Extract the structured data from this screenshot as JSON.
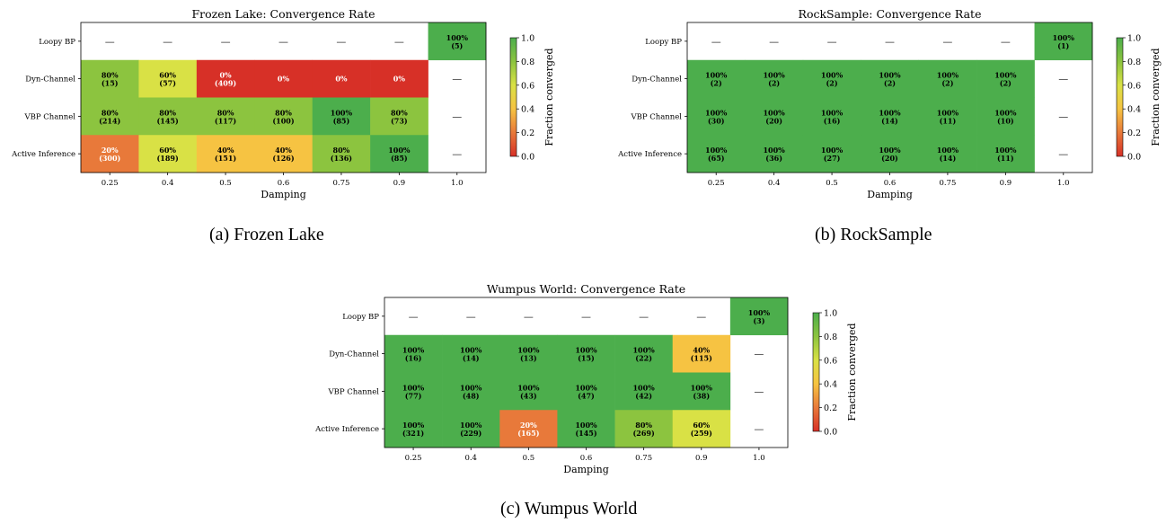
{
  "chart_data": [
    {
      "type": "heatmap",
      "title": "Frozen Lake: Convergence Rate",
      "xlabel": "Damping",
      "ylabel": "",
      "x_ticks": [
        "0.25",
        "0.4",
        "0.5",
        "0.6",
        "0.75",
        "0.9",
        "1.0"
      ],
      "rows": [
        "Loopy BP",
        "Dyn-Channel",
        "VBP Channel",
        "Active Inference"
      ],
      "cells": [
        [
          null,
          null,
          null,
          null,
          null,
          null,
          {
            "v": 1.0,
            "pct": "100%",
            "n": "(5)"
          }
        ],
        [
          {
            "v": 0.8,
            "pct": "80%",
            "n": "(15)"
          },
          {
            "v": 0.6,
            "pct": "60%",
            "n": "(57)"
          },
          {
            "v": 0.0,
            "pct": "0%",
            "n": "(409)"
          },
          {
            "v": 0.0,
            "pct": "0%",
            "n": ""
          },
          {
            "v": 0.0,
            "pct": "0%",
            "n": ""
          },
          {
            "v": 0.0,
            "pct": "0%",
            "n": ""
          },
          null
        ],
        [
          {
            "v": 0.8,
            "pct": "80%",
            "n": "(214)"
          },
          {
            "v": 0.8,
            "pct": "80%",
            "n": "(145)"
          },
          {
            "v": 0.8,
            "pct": "80%",
            "n": "(117)"
          },
          {
            "v": 0.8,
            "pct": "80%",
            "n": "(100)"
          },
          {
            "v": 1.0,
            "pct": "100%",
            "n": "(85)"
          },
          {
            "v": 0.8,
            "pct": "80%",
            "n": "(73)"
          },
          null
        ],
        [
          {
            "v": 0.2,
            "pct": "20%",
            "n": "(300)"
          },
          {
            "v": 0.6,
            "pct": "60%",
            "n": "(189)"
          },
          {
            "v": 0.4,
            "pct": "40%",
            "n": "(151)"
          },
          {
            "v": 0.4,
            "pct": "40%",
            "n": "(126)"
          },
          {
            "v": 0.8,
            "pct": "80%",
            "n": "(136)"
          },
          {
            "v": 1.0,
            "pct": "100%",
            "n": "(85)"
          },
          null
        ]
      ],
      "empty_marker": "—",
      "colorbar": {
        "label": "Fraction converged",
        "range": [
          0.0,
          1.0
        ],
        "ticks": [
          "0.0",
          "0.2",
          "0.4",
          "0.6",
          "0.8",
          "1.0"
        ]
      },
      "colors": {
        "0": "#d73027",
        "0.2": "#e8793a",
        "0.4": "#f6c342",
        "0.6": "#d9e145",
        "0.8": "#8cc43f",
        "1.0": "#4cae4c"
      }
    },
    {
      "type": "heatmap",
      "title": "RockSample: Convergence Rate",
      "xlabel": "Damping",
      "ylabel": "",
      "x_ticks": [
        "0.25",
        "0.4",
        "0.5",
        "0.6",
        "0.75",
        "0.9",
        "1.0"
      ],
      "rows": [
        "Loopy BP",
        "Dyn-Channel",
        "VBP Channel",
        "Active Inference"
      ],
      "cells": [
        [
          null,
          null,
          null,
          null,
          null,
          null,
          {
            "v": 1.0,
            "pct": "100%",
            "n": "(1)"
          }
        ],
        [
          {
            "v": 1.0,
            "pct": "100%",
            "n": "(2)"
          },
          {
            "v": 1.0,
            "pct": "100%",
            "n": "(2)"
          },
          {
            "v": 1.0,
            "pct": "100%",
            "n": "(2)"
          },
          {
            "v": 1.0,
            "pct": "100%",
            "n": "(2)"
          },
          {
            "v": 1.0,
            "pct": "100%",
            "n": "(2)"
          },
          {
            "v": 1.0,
            "pct": "100%",
            "n": "(2)"
          },
          null
        ],
        [
          {
            "v": 1.0,
            "pct": "100%",
            "n": "(30)"
          },
          {
            "v": 1.0,
            "pct": "100%",
            "n": "(20)"
          },
          {
            "v": 1.0,
            "pct": "100%",
            "n": "(16)"
          },
          {
            "v": 1.0,
            "pct": "100%",
            "n": "(14)"
          },
          {
            "v": 1.0,
            "pct": "100%",
            "n": "(11)"
          },
          {
            "v": 1.0,
            "pct": "100%",
            "n": "(10)"
          },
          null
        ],
        [
          {
            "v": 1.0,
            "pct": "100%",
            "n": "(65)"
          },
          {
            "v": 1.0,
            "pct": "100%",
            "n": "(36)"
          },
          {
            "v": 1.0,
            "pct": "100%",
            "n": "(27)"
          },
          {
            "v": 1.0,
            "pct": "100%",
            "n": "(20)"
          },
          {
            "v": 1.0,
            "pct": "100%",
            "n": "(14)"
          },
          {
            "v": 1.0,
            "pct": "100%",
            "n": "(11)"
          },
          null
        ]
      ],
      "empty_marker": "—",
      "colorbar": {
        "label": "Fraction converged",
        "range": [
          0.0,
          1.0
        ],
        "ticks": [
          "0.0",
          "0.2",
          "0.4",
          "0.6",
          "0.8",
          "1.0"
        ]
      },
      "colors": {
        "0": "#d73027",
        "0.2": "#e8793a",
        "0.4": "#f6c342",
        "0.6": "#d9e145",
        "0.8": "#8cc43f",
        "1.0": "#4cae4c"
      }
    },
    {
      "type": "heatmap",
      "title": "Wumpus World: Convergence Rate",
      "xlabel": "Damping",
      "ylabel": "",
      "x_ticks": [
        "0.25",
        "0.4",
        "0.5",
        "0.6",
        "0.75",
        "0.9",
        "1.0"
      ],
      "rows": [
        "Loopy BP",
        "Dyn-Channel",
        "VBP Channel",
        "Active Inference"
      ],
      "cells": [
        [
          null,
          null,
          null,
          null,
          null,
          null,
          {
            "v": 1.0,
            "pct": "100%",
            "n": "(3)"
          }
        ],
        [
          {
            "v": 1.0,
            "pct": "100%",
            "n": "(16)"
          },
          {
            "v": 1.0,
            "pct": "100%",
            "n": "(14)"
          },
          {
            "v": 1.0,
            "pct": "100%",
            "n": "(13)"
          },
          {
            "v": 1.0,
            "pct": "100%",
            "n": "(15)"
          },
          {
            "v": 1.0,
            "pct": "100%",
            "n": "(22)"
          },
          {
            "v": 0.4,
            "pct": "40%",
            "n": "(115)"
          },
          null
        ],
        [
          {
            "v": 1.0,
            "pct": "100%",
            "n": "(77)"
          },
          {
            "v": 1.0,
            "pct": "100%",
            "n": "(48)"
          },
          {
            "v": 1.0,
            "pct": "100%",
            "n": "(43)"
          },
          {
            "v": 1.0,
            "pct": "100%",
            "n": "(47)"
          },
          {
            "v": 1.0,
            "pct": "100%",
            "n": "(42)"
          },
          {
            "v": 1.0,
            "pct": "100%",
            "n": "(38)"
          },
          null
        ],
        [
          {
            "v": 1.0,
            "pct": "100%",
            "n": "(321)"
          },
          {
            "v": 1.0,
            "pct": "100%",
            "n": "(229)"
          },
          {
            "v": 0.2,
            "pct": "20%",
            "n": "(165)"
          },
          {
            "v": 1.0,
            "pct": "100%",
            "n": "(145)"
          },
          {
            "v": 0.8,
            "pct": "80%",
            "n": "(269)"
          },
          {
            "v": 0.6,
            "pct": "60%",
            "n": "(259)"
          },
          null
        ]
      ],
      "empty_marker": "—",
      "colorbar": {
        "label": "Fraction converged",
        "range": [
          0.0,
          1.0
        ],
        "ticks": [
          "0.0",
          "0.2",
          "0.4",
          "0.6",
          "0.8",
          "1.0"
        ]
      },
      "colors": {
        "0": "#d73027",
        "0.2": "#e8793a",
        "0.4": "#f6c342",
        "0.6": "#d9e145",
        "0.8": "#8cc43f",
        "1.0": "#4cae4c"
      }
    }
  ],
  "captions": {
    "a": "(a) Frozen Lake",
    "b": "(b) RockSample",
    "c": "(c) Wumpus World"
  }
}
